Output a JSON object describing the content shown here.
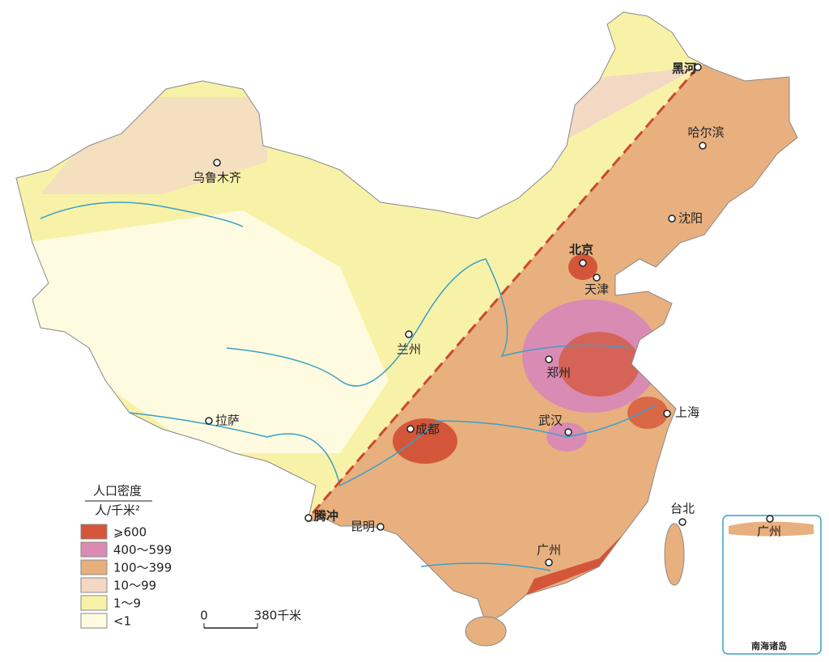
{
  "legend": {
    "title": "人口密度",
    "unit": "人/千米²",
    "items": [
      {
        "label": "⩾600",
        "color": "#d4563a"
      },
      {
        "label": "400～599",
        "color": "#d98bb3"
      },
      {
        "label": "100～399",
        "color": "#e8b07e"
      },
      {
        "label": "10～99",
        "color": "#f3d9c4"
      },
      {
        "label": "1～9",
        "color": "#f8f2a8"
      },
      {
        "label": "<1",
        "color": "#fffbe0"
      }
    ]
  },
  "cities": [
    {
      "name": "黑河",
      "bold": true
    },
    {
      "name": "哈尔滨"
    },
    {
      "name": "沈阳"
    },
    {
      "name": "北京",
      "bold": true
    },
    {
      "name": "天津"
    },
    {
      "name": "乌鲁木齐"
    },
    {
      "name": "兰州"
    },
    {
      "name": "郑州"
    },
    {
      "name": "上海"
    },
    {
      "name": "武汉"
    },
    {
      "name": "成都"
    },
    {
      "name": "拉萨"
    },
    {
      "name": "腾冲",
      "bold": true
    },
    {
      "name": "昆明"
    },
    {
      "name": "台北"
    },
    {
      "name": "广州"
    }
  ],
  "scale": {
    "start": "0",
    "end": "380千米"
  },
  "inset": {
    "title": "南海诸岛",
    "city": "广州"
  }
}
